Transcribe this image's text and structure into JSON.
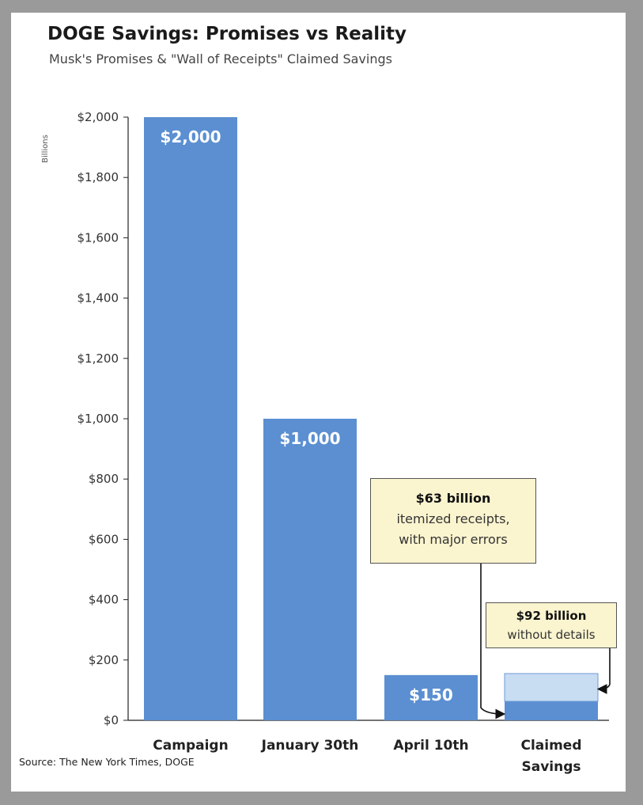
{
  "title": "DOGE Savings: Promises vs Reality",
  "subtitle": "Musk's Promises & \"Wall of Receipts\" Claimed Savings",
  "source": "Source: The New York Times, DOGE",
  "colors": {
    "bar": "#5b8fd1",
    "bar_light": "#c8dcf2",
    "callout_bg": "#faf4cf"
  },
  "chart_data": {
    "type": "bar",
    "title": "DOGE Savings: Promises vs Reality",
    "subtitle": "Musk's Promises & \"Wall of Receipts\" Claimed Savings",
    "ylabel": "Billions",
    "ylim": [
      0,
      2000
    ],
    "yticks": [
      "$0",
      "$200",
      "$400",
      "$600",
      "$800",
      "$1,000",
      "$1,200",
      "$1,400",
      "$1,600",
      "$1,800",
      "$2,000"
    ],
    "ytick_values": [
      0,
      200,
      400,
      600,
      800,
      1000,
      1200,
      1400,
      1600,
      1800,
      2000
    ],
    "categories": [
      "Campaign",
      "January 30th",
      "April 10th",
      "Claimed Savings"
    ],
    "category_lines": [
      [
        "Campaign"
      ],
      [
        "January 30th"
      ],
      [
        "April 10th"
      ],
      [
        "Claimed",
        "Savings"
      ]
    ],
    "values": [
      2000,
      1000,
      150,
      null
    ],
    "data_labels": [
      "$2,000",
      "$1,000",
      "$150",
      ""
    ],
    "stacked": {
      "category": "Claimed Savings",
      "segments": [
        {
          "value": 63,
          "color": "#5b8fd1"
        },
        {
          "value": 92,
          "color": "#c8dcf2"
        }
      ]
    },
    "annotations": [
      {
        "heading": "$63 billion",
        "lines": [
          "itemized receipts,",
          "with major errors"
        ]
      },
      {
        "heading": "$92 billion",
        "lines": [
          "without details"
        ]
      }
    ],
    "grid": false,
    "legend": "none"
  }
}
